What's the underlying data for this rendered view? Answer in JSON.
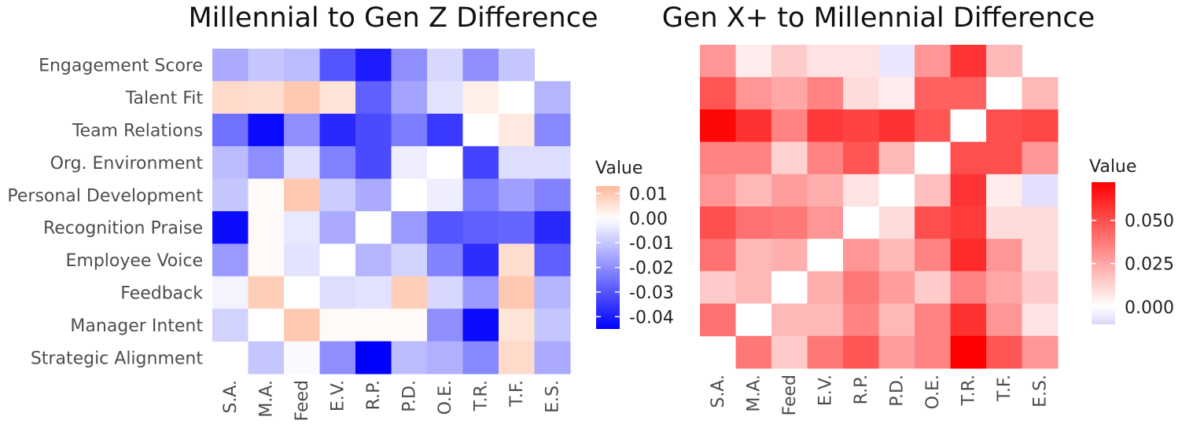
{
  "chart_data": [
    {
      "type": "heatmap",
      "title": "Millennial to Gen Z Difference",
      "rows": [
        "Engagement Score",
        "Talent Fit",
        "Team Relations",
        "Org. Environment",
        "Personal Development",
        "Recognition Praise",
        "Employee Voice",
        "Feedback",
        "Manager Intent",
        "Strategic Alignment"
      ],
      "columns": [
        "S.A.",
        "M.A.",
        "Feed",
        "E.V.",
        "R.P.",
        "P.D.",
        "O.E.",
        "T.R.",
        "T.F.",
        "E.S."
      ],
      "values": [
        [
          -0.015,
          -0.01,
          -0.012,
          -0.03,
          -0.04,
          -0.02,
          -0.007,
          -0.02,
          -0.01,
          null
        ],
        [
          0.007,
          0.006,
          0.01,
          0.005,
          -0.028,
          -0.016,
          -0.005,
          0.003,
          0.0,
          -0.013
        ],
        [
          -0.025,
          -0.043,
          -0.02,
          -0.038,
          -0.032,
          -0.023,
          -0.035,
          0.0,
          0.004,
          -0.021
        ],
        [
          -0.012,
          -0.02,
          -0.006,
          -0.022,
          -0.032,
          -0.003,
          0.0,
          -0.033,
          -0.006,
          -0.006
        ],
        [
          -0.01,
          0.001,
          0.01,
          -0.009,
          -0.015,
          0.0,
          -0.003,
          -0.023,
          -0.017,
          -0.022
        ],
        [
          -0.043,
          0.001,
          -0.004,
          -0.015,
          0.0,
          -0.018,
          -0.03,
          -0.028,
          -0.027,
          -0.038
        ],
        [
          -0.018,
          0.001,
          -0.005,
          0.0,
          -0.013,
          -0.008,
          -0.022,
          -0.037,
          0.006,
          -0.028
        ],
        [
          -0.002,
          0.009,
          0.0,
          -0.006,
          -0.005,
          0.009,
          -0.007,
          -0.018,
          0.01,
          -0.013
        ],
        [
          -0.008,
          0.0,
          0.01,
          0.001,
          0.001,
          0.001,
          -0.02,
          -0.043,
          0.005,
          -0.01
        ],
        [
          null,
          -0.01,
          -0.001,
          -0.02,
          -0.045,
          -0.012,
          -0.014,
          -0.021,
          0.007,
          -0.015
        ]
      ],
      "legend": {
        "title": "Value",
        "ticks": [
          0.01,
          0.0,
          -0.01,
          -0.02,
          -0.03,
          -0.04
        ],
        "tick_labels": [
          "0.01",
          "0.00",
          "-0.01",
          "-0.02",
          "-0.03",
          "-0.04"
        ],
        "range": [
          -0.045,
          0.013
        ],
        "low_color": "#0000ff",
        "mid_color": "#ffffff",
        "high_color": "#ffb89a",
        "position": "right"
      }
    },
    {
      "type": "heatmap",
      "title": "Gen X+ to Millennial Difference",
      "rows": [
        "Engagement Score",
        "Talent Fit",
        "Team Relations",
        "Org. Environment",
        "Personal Development",
        "Recognition Praise",
        "Employee Voice",
        "Feedback",
        "Manager Intent",
        "Strategic Alignment"
      ],
      "columns": [
        "S.A.",
        "M.A.",
        "Feed",
        "E.V.",
        "R.P.",
        "P.D.",
        "O.E.",
        "T.R.",
        "T.F.",
        "E.S."
      ],
      "values": [
        [
          0.03,
          0.005,
          0.015,
          0.008,
          0.008,
          -0.006,
          0.03,
          0.057,
          0.02,
          null
        ],
        [
          0.048,
          0.03,
          0.025,
          0.035,
          0.01,
          0.005,
          0.045,
          0.045,
          0.0,
          0.02
        ],
        [
          0.07,
          0.058,
          0.035,
          0.056,
          0.053,
          0.058,
          0.048,
          0.0,
          0.05,
          0.052
        ],
        [
          0.035,
          0.035,
          0.013,
          0.035,
          0.048,
          0.02,
          0.0,
          0.05,
          0.05,
          0.03
        ],
        [
          0.03,
          0.02,
          0.028,
          0.023,
          0.008,
          0.0,
          0.018,
          0.057,
          0.005,
          -0.008
        ],
        [
          0.05,
          0.04,
          0.038,
          0.03,
          0.0,
          0.01,
          0.05,
          0.055,
          0.01,
          0.01
        ],
        [
          0.04,
          0.02,
          0.023,
          0.0,
          0.03,
          0.02,
          0.035,
          0.06,
          0.03,
          0.01
        ],
        [
          0.015,
          0.02,
          0.0,
          0.023,
          0.038,
          0.028,
          0.015,
          0.035,
          0.025,
          0.015
        ],
        [
          0.04,
          0.0,
          0.02,
          0.02,
          0.035,
          0.02,
          0.035,
          0.058,
          0.03,
          0.008
        ],
        [
          null,
          0.038,
          0.015,
          0.038,
          0.048,
          0.028,
          0.035,
          0.072,
          0.048,
          0.03
        ]
      ],
      "legend": {
        "title": "Value",
        "ticks": [
          0.05,
          0.025,
          0.0
        ],
        "tick_labels": [
          "0.050",
          "0.025",
          "0.000"
        ],
        "range": [
          -0.01,
          0.072
        ],
        "low_color": "#ddd6ff",
        "mid_color": "#ffffff",
        "high_color": "#ff0000",
        "position": "right"
      }
    }
  ]
}
